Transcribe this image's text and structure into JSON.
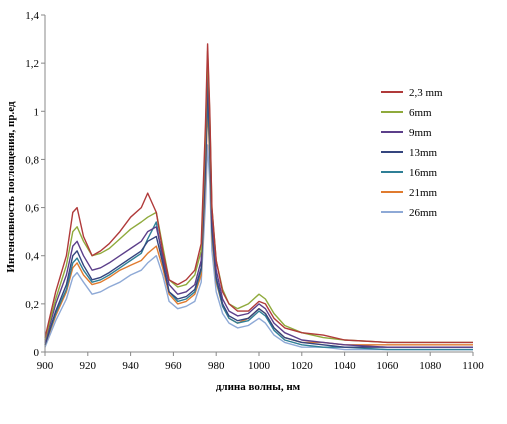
{
  "chart_data": {
    "type": "line",
    "xlabel": "длина волны, нм",
    "ylabel": "Интенсивность поглощения, пр.ед",
    "xlim": [
      900,
      1100
    ],
    "ylim": [
      0,
      1.4
    ],
    "x_ticks": [
      900,
      920,
      940,
      960,
      980,
      1000,
      1020,
      1040,
      1060,
      1080,
      1100
    ],
    "x_tick_labels": [
      "900",
      "920",
      "940",
      "960",
      "980",
      "1000",
      "1020",
      "1040",
      "1060",
      "1080",
      "1100"
    ],
    "y_ticks": [
      0,
      0.2,
      0.4,
      0.6,
      0.8,
      1.0,
      1.2,
      1.4
    ],
    "y_tick_labels": [
      "0",
      "0,2",
      "0,4",
      "0,6",
      "0,8",
      "1",
      "1,2",
      "1,4"
    ],
    "grid": false,
    "legend_position": "right",
    "x": [
      900,
      905,
      910,
      913,
      915,
      918,
      922,
      926,
      930,
      935,
      940,
      945,
      948,
      952,
      955,
      958,
      962,
      966,
      970,
      973,
      975,
      976,
      977,
      978,
      980,
      983,
      986,
      990,
      995,
      1000,
      1003,
      1007,
      1012,
      1020,
      1030,
      1040,
      1060,
      1080,
      1100
    ],
    "series": [
      {
        "name": "2,3 mm",
        "color": "#b03a3a",
        "values": [
          0.06,
          0.25,
          0.4,
          0.58,
          0.6,
          0.48,
          0.4,
          0.42,
          0.45,
          0.5,
          0.56,
          0.6,
          0.66,
          0.58,
          0.42,
          0.3,
          0.28,
          0.3,
          0.34,
          0.45,
          0.95,
          1.28,
          1.0,
          0.6,
          0.38,
          0.25,
          0.2,
          0.17,
          0.17,
          0.21,
          0.2,
          0.14,
          0.1,
          0.08,
          0.07,
          0.05,
          0.04,
          0.04,
          0.04
        ]
      },
      {
        "name": "6mm",
        "color": "#8faa3c",
        "values": [
          0.05,
          0.22,
          0.36,
          0.5,
          0.52,
          0.46,
          0.4,
          0.41,
          0.43,
          0.47,
          0.51,
          0.54,
          0.56,
          0.58,
          0.44,
          0.3,
          0.27,
          0.28,
          0.32,
          0.42,
          0.9,
          1.25,
          0.98,
          0.6,
          0.38,
          0.26,
          0.2,
          0.18,
          0.2,
          0.24,
          0.22,
          0.16,
          0.11,
          0.08,
          0.06,
          0.05,
          0.04,
          0.04,
          0.04
        ]
      },
      {
        "name": "9mm",
        "color": "#5c3f8a",
        "values": [
          0.04,
          0.2,
          0.32,
          0.44,
          0.46,
          0.4,
          0.34,
          0.35,
          0.37,
          0.4,
          0.43,
          0.46,
          0.5,
          0.52,
          0.4,
          0.28,
          0.24,
          0.25,
          0.28,
          0.38,
          0.85,
          1.22,
          0.95,
          0.56,
          0.34,
          0.22,
          0.17,
          0.15,
          0.16,
          0.2,
          0.18,
          0.12,
          0.08,
          0.05,
          0.04,
          0.03,
          0.02,
          0.02,
          0.02
        ]
      },
      {
        "name": "13mm",
        "color": "#35457e",
        "values": [
          0.03,
          0.17,
          0.28,
          0.4,
          0.42,
          0.36,
          0.3,
          0.31,
          0.33,
          0.36,
          0.39,
          0.42,
          0.46,
          0.48,
          0.37,
          0.25,
          0.22,
          0.23,
          0.26,
          0.35,
          0.78,
          1.12,
          0.88,
          0.52,
          0.31,
          0.2,
          0.15,
          0.13,
          0.14,
          0.18,
          0.16,
          0.1,
          0.06,
          0.04,
          0.03,
          0.02,
          0.02,
          0.02,
          0.02
        ]
      },
      {
        "name": "16mm",
        "color": "#2f7f96",
        "values": [
          0.03,
          0.16,
          0.26,
          0.37,
          0.39,
          0.34,
          0.29,
          0.3,
          0.32,
          0.35,
          0.38,
          0.41,
          0.47,
          0.54,
          0.38,
          0.25,
          0.21,
          0.22,
          0.25,
          0.34,
          0.75,
          1.06,
          0.84,
          0.5,
          0.3,
          0.19,
          0.14,
          0.12,
          0.13,
          0.17,
          0.15,
          0.09,
          0.05,
          0.03,
          0.02,
          0.02,
          0.01,
          0.01,
          0.01
        ]
      },
      {
        "name": "21mm",
        "color": "#e07b2f",
        "values": [
          0.03,
          0.15,
          0.25,
          0.35,
          0.37,
          0.32,
          0.28,
          0.29,
          0.31,
          0.34,
          0.36,
          0.38,
          0.41,
          0.44,
          0.35,
          0.24,
          0.2,
          0.21,
          0.24,
          0.32,
          0.72,
          1.02,
          0.8,
          0.48,
          0.29,
          0.19,
          0.14,
          0.12,
          0.14,
          0.18,
          0.16,
          0.1,
          0.06,
          0.04,
          0.04,
          0.03,
          0.03,
          0.03,
          0.03
        ]
      },
      {
        "name": "26mm",
        "color": "#8ea9d6",
        "values": [
          0.02,
          0.13,
          0.22,
          0.31,
          0.33,
          0.29,
          0.24,
          0.25,
          0.27,
          0.29,
          0.32,
          0.34,
          0.37,
          0.4,
          0.32,
          0.21,
          0.18,
          0.19,
          0.21,
          0.29,
          0.62,
          0.86,
          0.7,
          0.42,
          0.25,
          0.16,
          0.12,
          0.1,
          0.11,
          0.14,
          0.12,
          0.07,
          0.04,
          0.02,
          0.02,
          0.01,
          0.01,
          0.01,
          0.01
        ]
      }
    ]
  }
}
